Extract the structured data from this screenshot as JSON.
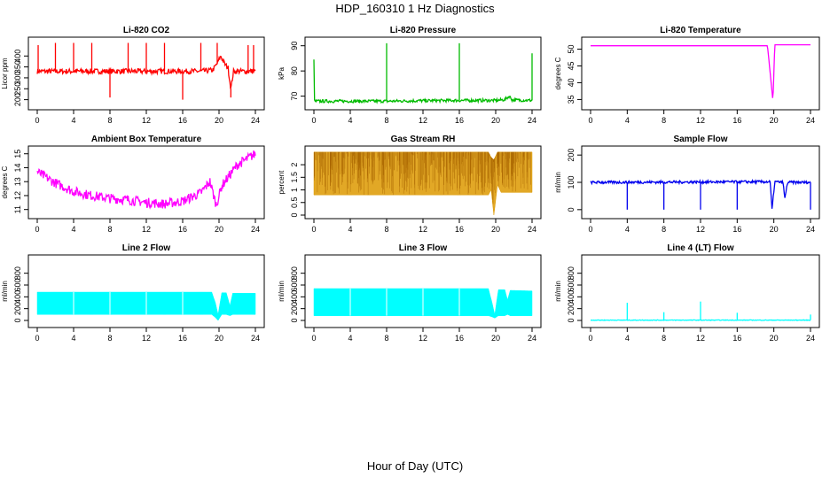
{
  "page": {
    "title": "HDP_160310  1 Hz Diagnostics",
    "x_axis_label": "Hour of Day (UTC)"
  },
  "chart_data": [
    {
      "type": "line",
      "title": "Li-820 CO2",
      "ylabel": "Licor ppm",
      "color": "#ff0000",
      "xlim": [
        0,
        24
      ],
      "ylim": [
        170,
        470
      ],
      "xticks": [
        0,
        4,
        8,
        12,
        16,
        20,
        24
      ],
      "yticks": [
        200,
        250,
        300,
        350,
        400
      ],
      "baseline": [
        [
          0,
          330
        ],
        [
          2,
          330
        ],
        [
          4,
          330
        ],
        [
          6,
          330
        ],
        [
          8,
          330
        ],
        [
          10,
          330
        ],
        [
          12,
          330
        ],
        [
          14,
          330
        ],
        [
          16,
          330
        ],
        [
          18,
          330
        ],
        [
          19.3,
          335
        ],
        [
          19.8,
          365
        ],
        [
          20.2,
          400
        ],
        [
          20.6,
          365
        ],
        [
          21,
          345
        ],
        [
          21.3,
          250
        ],
        [
          21.6,
          330
        ],
        [
          22,
          330
        ],
        [
          24,
          330
        ]
      ],
      "spikes": [
        [
          0.1,
          450
        ],
        [
          2,
          460
        ],
        [
          4,
          460
        ],
        [
          6,
          460
        ],
        [
          8,
          210
        ],
        [
          10,
          460
        ],
        [
          12,
          460
        ],
        [
          14,
          460
        ],
        [
          16,
          200
        ],
        [
          18,
          460
        ],
        [
          19.8,
          460
        ],
        [
          21.3,
          210
        ],
        [
          23.2,
          450
        ],
        [
          23.8,
          450
        ]
      ],
      "band": 12
    },
    {
      "type": "line",
      "title": "Li-820 Pressure",
      "ylabel": "kPa",
      "color": "#00bb00",
      "xlim": [
        0,
        24
      ],
      "ylim": [
        66,
        92
      ],
      "xticks": [
        0,
        4,
        8,
        12,
        16,
        20,
        24
      ],
      "yticks": [
        70,
        80,
        90
      ],
      "baseline": [
        [
          0,
          85
        ],
        [
          0.05,
          68
        ],
        [
          4,
          68
        ],
        [
          8,
          68
        ],
        [
          12,
          68.2
        ],
        [
          16,
          68.3
        ],
        [
          20,
          68.3
        ],
        [
          21,
          68.6
        ],
        [
          21.5,
          70
        ],
        [
          21.8,
          68.5
        ],
        [
          24,
          68.3
        ]
      ],
      "spikes": [
        [
          8,
          91
        ],
        [
          16,
          91
        ],
        [
          24,
          87
        ]
      ],
      "band": 0.6
    },
    {
      "type": "line",
      "title": "Li-820 Temperature",
      "ylabel": "degrees C",
      "color": "#ff00ff",
      "xlim": [
        0,
        24
      ],
      "ylim": [
        33,
        52.5
      ],
      "xticks": [
        0,
        4,
        8,
        12,
        16,
        20,
        24
      ],
      "yticks": [
        35,
        40,
        45,
        50
      ],
      "baseline": [
        [
          0,
          51
        ],
        [
          19.3,
          51
        ],
        [
          19.6,
          43
        ],
        [
          19.9,
          34.5
        ],
        [
          20.1,
          51.3
        ],
        [
          24,
          51.3
        ]
      ],
      "spikes": [],
      "band": 0
    },
    {
      "type": "line",
      "title": "Ambient Box Temperature",
      "ylabel": "degrees C",
      "color": "#ff00ff",
      "xlim": [
        0,
        24
      ],
      "ylim": [
        10.6,
        15.3
      ],
      "xticks": [
        0,
        4,
        8,
        12,
        16,
        20,
        24
      ],
      "yticks": [
        11,
        12,
        13,
        14,
        15
      ],
      "baseline": [
        [
          0,
          13.7
        ],
        [
          2,
          12.9
        ],
        [
          4,
          12.3
        ],
        [
          6,
          12.0
        ],
        [
          8,
          11.8
        ],
        [
          10,
          11.7
        ],
        [
          12,
          11.5
        ],
        [
          14,
          11.4
        ],
        [
          16,
          11.6
        ],
        [
          18,
          12.2
        ],
        [
          19,
          13.0
        ],
        [
          19.7,
          11.3
        ],
        [
          20.3,
          12.7
        ],
        [
          22,
          14.2
        ],
        [
          24,
          15.0
        ]
      ],
      "spikes": [],
      "band": 0.35
    },
    {
      "type": "line",
      "title": "Gas Stream RH",
      "ylabel": "percent",
      "color": "#dd9900",
      "xlim": [
        0,
        24
      ],
      "ylim": [
        0,
        2.6
      ],
      "xticks": [
        0,
        4,
        8,
        12,
        16,
        20,
        24
      ],
      "yticks": [
        0.0,
        0.5,
        1.0,
        1.5,
        2.0
      ],
      "bands": [
        [
          0,
          0.8,
          2.5
        ],
        [
          19.2,
          0.8,
          2.5
        ],
        [
          19.5,
          1.0,
          2.3
        ],
        [
          19.8,
          0.0,
          2.2
        ],
        [
          20.2,
          1.2,
          2.5
        ],
        [
          20.6,
          0.9,
          2.5
        ],
        [
          24,
          0.9,
          2.5
        ]
      ],
      "spikes": [],
      "band": 0
    },
    {
      "type": "line",
      "title": "Sample Flow",
      "ylabel": "ml/min",
      "color": "#0000ee",
      "xlim": [
        0,
        24
      ],
      "ylim": [
        -20,
        220
      ],
      "xticks": [
        0,
        4,
        8,
        12,
        16,
        20,
        24
      ],
      "yticks": [
        0,
        100,
        200
      ],
      "baseline": [
        [
          0,
          100
        ],
        [
          19.6,
          102
        ],
        [
          19.8,
          0
        ],
        [
          20.1,
          102
        ],
        [
          21,
          100
        ],
        [
          21.2,
          40
        ],
        [
          21.5,
          100
        ],
        [
          24,
          100
        ]
      ],
      "spikes": [
        [
          4,
          0
        ],
        [
          8,
          0
        ],
        [
          12,
          0
        ],
        [
          16,
          0
        ],
        [
          24,
          0
        ]
      ],
      "band": 5
    },
    {
      "type": "line",
      "title": "Line 2 Flow",
      "ylabel": "ml/min",
      "color": "#00ffff",
      "xlim": [
        0,
        24
      ],
      "ylim": [
        -60,
        1050
      ],
      "xticks": [
        0,
        4,
        8,
        12,
        16,
        20,
        24
      ],
      "yticks": [
        0,
        200,
        400,
        600,
        800
      ],
      "bands": [
        [
          0,
          100,
          480
        ],
        [
          19.2,
          100,
          480
        ],
        [
          19.6,
          50,
          300
        ],
        [
          19.9,
          0,
          100
        ],
        [
          20.3,
          100,
          470
        ],
        [
          20.8,
          100,
          470
        ],
        [
          21.2,
          80,
          250
        ],
        [
          21.5,
          100,
          460
        ],
        [
          24,
          100,
          460
        ]
      ],
      "dividers": [
        4,
        8,
        12,
        16
      ],
      "spikes": [],
      "band": 0
    },
    {
      "type": "line",
      "title": "Line 3 Flow",
      "ylabel": "ml/min",
      "color": "#00ffff",
      "xlim": [
        0,
        24
      ],
      "ylim": [
        -60,
        1050
      ],
      "xticks": [
        0,
        4,
        8,
        12,
        16,
        20,
        24
      ],
      "yticks": [
        0,
        200,
        400,
        600,
        800
      ],
      "bands": [
        [
          0,
          80,
          540
        ],
        [
          19.2,
          80,
          540
        ],
        [
          19.6,
          60,
          300
        ],
        [
          19.9,
          40,
          100
        ],
        [
          20.3,
          80,
          520
        ],
        [
          21,
          80,
          520
        ],
        [
          21.3,
          100,
          350
        ],
        [
          21.6,
          80,
          510
        ],
        [
          24,
          80,
          500
        ]
      ],
      "dividers": [
        4,
        8,
        12,
        16
      ],
      "spikes": [],
      "band": 0
    },
    {
      "type": "line",
      "title": "Line 4 (LT) Flow",
      "ylabel": "ml/min",
      "color": "#00ffff",
      "xlim": [
        0,
        24
      ],
      "ylim": [
        -60,
        1050
      ],
      "xticks": [
        0,
        4,
        8,
        12,
        16,
        20,
        24
      ],
      "yticks": [
        0,
        200,
        400,
        600,
        800
      ],
      "baseline": [
        [
          0,
          5
        ],
        [
          24,
          5
        ]
      ],
      "spikes": [
        [
          4,
          300
        ],
        [
          8,
          140
        ],
        [
          12,
          320
        ],
        [
          16,
          130
        ],
        [
          24,
          100
        ]
      ],
      "band": 5
    }
  ]
}
